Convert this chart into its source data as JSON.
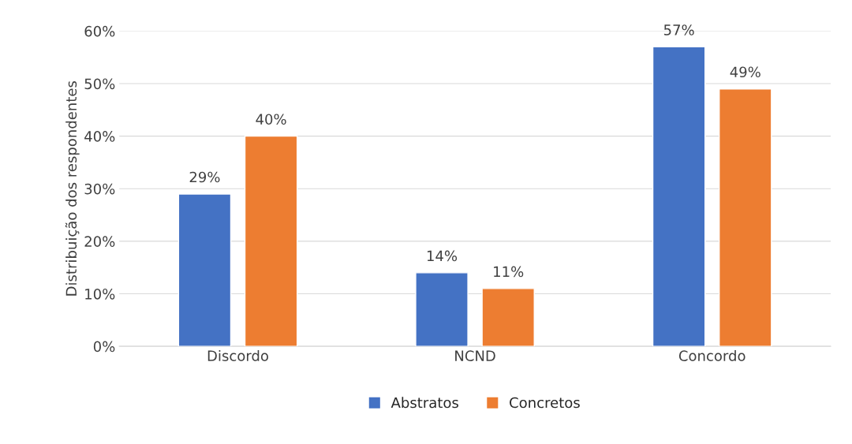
{
  "chart_data": {
    "type": "bar",
    "ylabel": "Distribuição dos respondentes",
    "categories": [
      "Discordo",
      "NCND",
      "Concordo"
    ],
    "series": [
      {
        "name": "Abstratos",
        "color": "#4472c4",
        "values": [
          29,
          14,
          57
        ],
        "value_labels": [
          "29%",
          "14%",
          "57%"
        ]
      },
      {
        "name": "Concretos",
        "color": "#ed7d31",
        "values": [
          40,
          11,
          49
        ],
        "value_labels": [
          "40%",
          "11%",
          "49%"
        ]
      }
    ],
    "ylim": [
      0,
      60
    ],
    "yticks": [
      {
        "value": 0,
        "label": "0%"
      },
      {
        "value": 10,
        "label": "10%"
      },
      {
        "value": 20,
        "label": "20%"
      },
      {
        "value": 30,
        "label": "30%"
      },
      {
        "value": 40,
        "label": "40%"
      },
      {
        "value": 50,
        "label": "50%"
      },
      {
        "value": 60,
        "label": "60%"
      }
    ],
    "grid": "y",
    "legend": "bottom"
  }
}
